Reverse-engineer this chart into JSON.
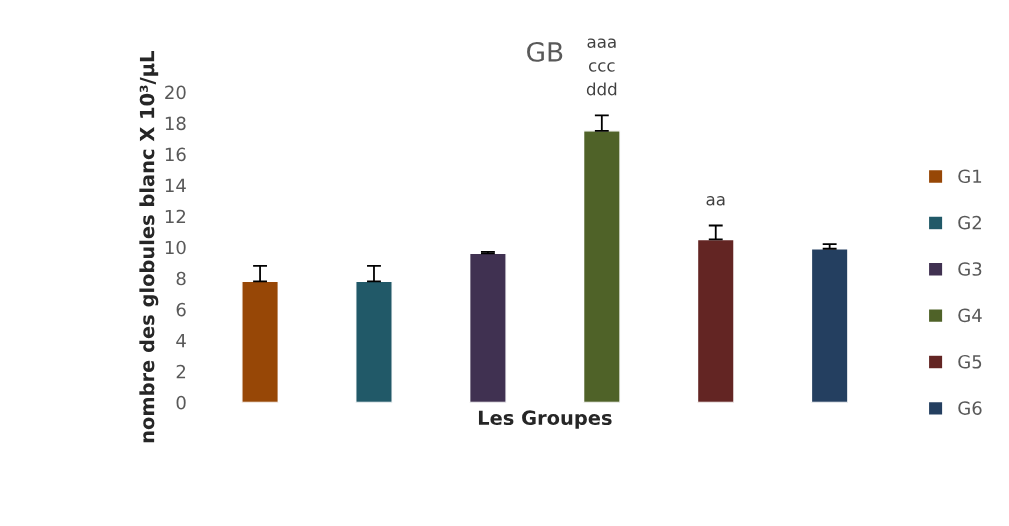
{
  "chart_data": {
    "type": "bar",
    "title": "GB",
    "xlabel": "Les Groupes",
    "ylabel": "nombre des globules blanc X 10³/µL",
    "categories": [
      null,
      null,
      null,
      null,
      null,
      null
    ],
    "stacked": true,
    "series": [
      {
        "name": "G1",
        "color": "#974706",
        "values": [
          7.8,
          null,
          null,
          null,
          null,
          null
        ],
        "errors": [
          [
            7.8,
            8.8
          ],
          null,
          null,
          null,
          null,
          null
        ]
      },
      {
        "name": "G2",
        "color": "#215968",
        "values": [
          null,
          7.8,
          null,
          null,
          null,
          null
        ],
        "errors": [
          null,
          [
            7.8,
            8.8
          ],
          null,
          null,
          null,
          null
        ]
      },
      {
        "name": "G3",
        "color": "#403151",
        "values": [
          null,
          null,
          9.6,
          null,
          null,
          null
        ],
        "errors": [
          null,
          null,
          [
            9.6,
            9.7
          ],
          null,
          null,
          null
        ]
      },
      {
        "name": "G4",
        "color": "#4f6228",
        "values": [
          null,
          null,
          null,
          17.5,
          null,
          null
        ],
        "errors": [
          null,
          null,
          null,
          [
            17.5,
            18.5
          ],
          null,
          null
        ]
      },
      {
        "name": "G5",
        "color": "#632523",
        "values": [
          null,
          null,
          null,
          null,
          10.5,
          null
        ],
        "errors": [
          null,
          null,
          null,
          null,
          [
            10.5,
            11.4
          ],
          null
        ]
      },
      {
        "name": "G6",
        "color": "#243f60",
        "values": [
          null,
          null,
          null,
          null,
          null,
          9.9
        ],
        "errors": [
          null,
          null,
          null,
          null,
          null,
          [
            9.9,
            10.2
          ]
        ]
      }
    ],
    "annotations": [
      "aaa\nccc\nddd",
      "aa"
    ],
    "ylim": [
      0,
      20
    ],
    "yticks": [
      0,
      2,
      4,
      6,
      8,
      10,
      12,
      14,
      16,
      18,
      20
    ],
    "grid": false,
    "legend": "right"
  }
}
